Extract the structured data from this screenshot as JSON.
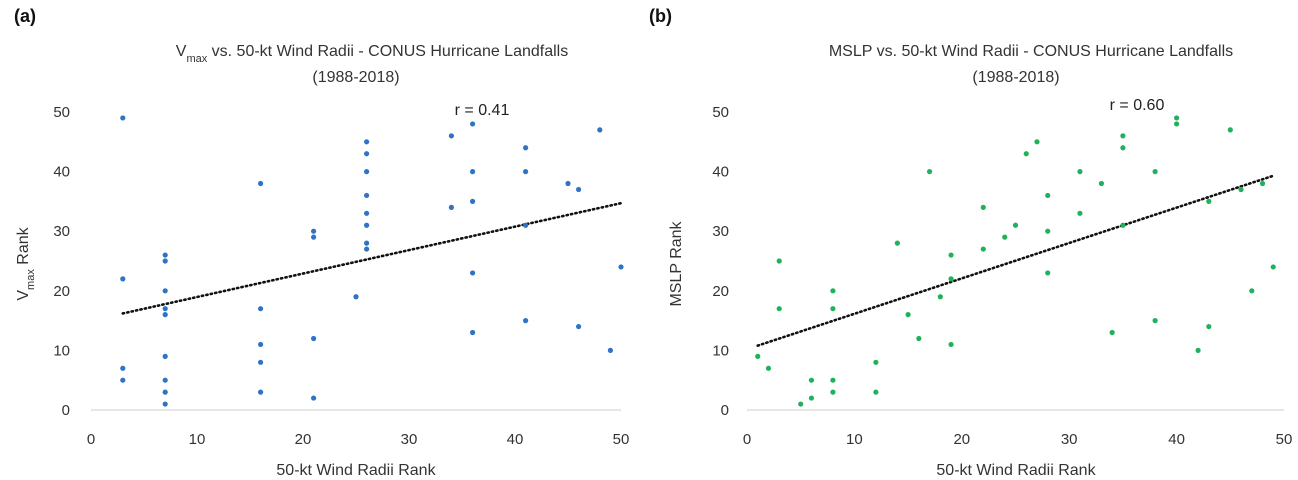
{
  "chart_data": [
    {
      "type": "scatter",
      "panel_label": "(a)",
      "title": {
        "line1_prefix": "V",
        "line1_subscript": "max",
        "line1_suffix": " vs. 50-kt Wind Radii - CONUS Hurricane Landfalls",
        "line2": "(1988-2018)"
      },
      "xlabel": "50-kt Wind Radii Rank",
      "ylabel": {
        "prefix": "V",
        "subscript": "max",
        "suffix": " Rank"
      },
      "xlim": [
        0,
        50
      ],
      "ylim": [
        0,
        50
      ],
      "xticks": [
        0,
        10,
        20,
        30,
        40,
        50
      ],
      "yticks": [
        0,
        10,
        20,
        30,
        40,
        50
      ],
      "annotation": "r = 0.41",
      "trendline": {
        "start": [
          3,
          16.2
        ],
        "end": [
          50,
          34.7
        ],
        "style": "dotted",
        "color": "#111111"
      },
      "series": [
        {
          "color": "#2f73c7",
          "points": [
            [
              3,
              49
            ],
            [
              3,
              22
            ],
            [
              3,
              7
            ],
            [
              3,
              5
            ],
            [
              7,
              26
            ],
            [
              7,
              25
            ],
            [
              7,
              20
            ],
            [
              7,
              17
            ],
            [
              7,
              16
            ],
            [
              7,
              9
            ],
            [
              7,
              5
            ],
            [
              7,
              3
            ],
            [
              7,
              1
            ],
            [
              16,
              38
            ],
            [
              16,
              17
            ],
            [
              16,
              11
            ],
            [
              16,
              8
            ],
            [
              16,
              3
            ],
            [
              21,
              30
            ],
            [
              21,
              29
            ],
            [
              21,
              12
            ],
            [
              21,
              2
            ],
            [
              25,
              19
            ],
            [
              26,
              45
            ],
            [
              26,
              43
            ],
            [
              26,
              40
            ],
            [
              26,
              36
            ],
            [
              26,
              33
            ],
            [
              26,
              31
            ],
            [
              26,
              28
            ],
            [
              26,
              27
            ],
            [
              34,
              46
            ],
            [
              34,
              34
            ],
            [
              36,
              48
            ],
            [
              36,
              40
            ],
            [
              36,
              35
            ],
            [
              36,
              23
            ],
            [
              36,
              13
            ],
            [
              41,
              44
            ],
            [
              41,
              40
            ],
            [
              41,
              31
            ],
            [
              41,
              15
            ],
            [
              45,
              38
            ],
            [
              46,
              37
            ],
            [
              46,
              14
            ],
            [
              48,
              47
            ],
            [
              49,
              10
            ],
            [
              50,
              24
            ]
          ]
        }
      ]
    },
    {
      "type": "scatter",
      "panel_label": "(b)",
      "title": {
        "line1": "MSLP vs. 50-kt Wind Radii - CONUS Hurricane Landfalls",
        "line2": "(1988-2018)"
      },
      "xlabel": "50-kt Wind Radii Rank",
      "ylabel": "MSLP Rank",
      "xlim": [
        0,
        50
      ],
      "ylim": [
        0,
        50
      ],
      "xticks": [
        0,
        10,
        20,
        30,
        40,
        50
      ],
      "xticklabels": [
        "0",
        "10",
        "20",
        "30",
        "40",
        "50"
      ],
      "yticks": [
        0,
        10,
        20,
        30,
        40,
        50
      ],
      "annotation": "r = 0.60",
      "trendline": {
        "start": [
          1,
          10.8
        ],
        "end": [
          49,
          39.3
        ],
        "style": "dotted",
        "color": "#111111"
      },
      "series": [
        {
          "color": "#20b25a",
          "points": [
            [
              1,
              9
            ],
            [
              2,
              7
            ],
            [
              3,
              25
            ],
            [
              3,
              17
            ],
            [
              5,
              1
            ],
            [
              6,
              5
            ],
            [
              6,
              2
            ],
            [
              8,
              20
            ],
            [
              8,
              17
            ],
            [
              8,
              5
            ],
            [
              8,
              3
            ],
            [
              12,
              8
            ],
            [
              12,
              3
            ],
            [
              14,
              28
            ],
            [
              15,
              16
            ],
            [
              16,
              12
            ],
            [
              17,
              40
            ],
            [
              18,
              19
            ],
            [
              19,
              26
            ],
            [
              19,
              22
            ],
            [
              19,
              11
            ],
            [
              22,
              34
            ],
            [
              22,
              27
            ],
            [
              24,
              29
            ],
            [
              25,
              31
            ],
            [
              26,
              43
            ],
            [
              27,
              45
            ],
            [
              28,
              36
            ],
            [
              28,
              30
            ],
            [
              28,
              23
            ],
            [
              31,
              40
            ],
            [
              31,
              33
            ],
            [
              33,
              38
            ],
            [
              34,
              13
            ],
            [
              35,
              46
            ],
            [
              35,
              44
            ],
            [
              35,
              31
            ],
            [
              38,
              40
            ],
            [
              38,
              15
            ],
            [
              40,
              49
            ],
            [
              40,
              48
            ],
            [
              42,
              10
            ],
            [
              43,
              35
            ],
            [
              43,
              14
            ],
            [
              45,
              47
            ],
            [
              46,
              37
            ],
            [
              47,
              20
            ],
            [
              48,
              38
            ],
            [
              49,
              24
            ]
          ]
        }
      ]
    }
  ]
}
